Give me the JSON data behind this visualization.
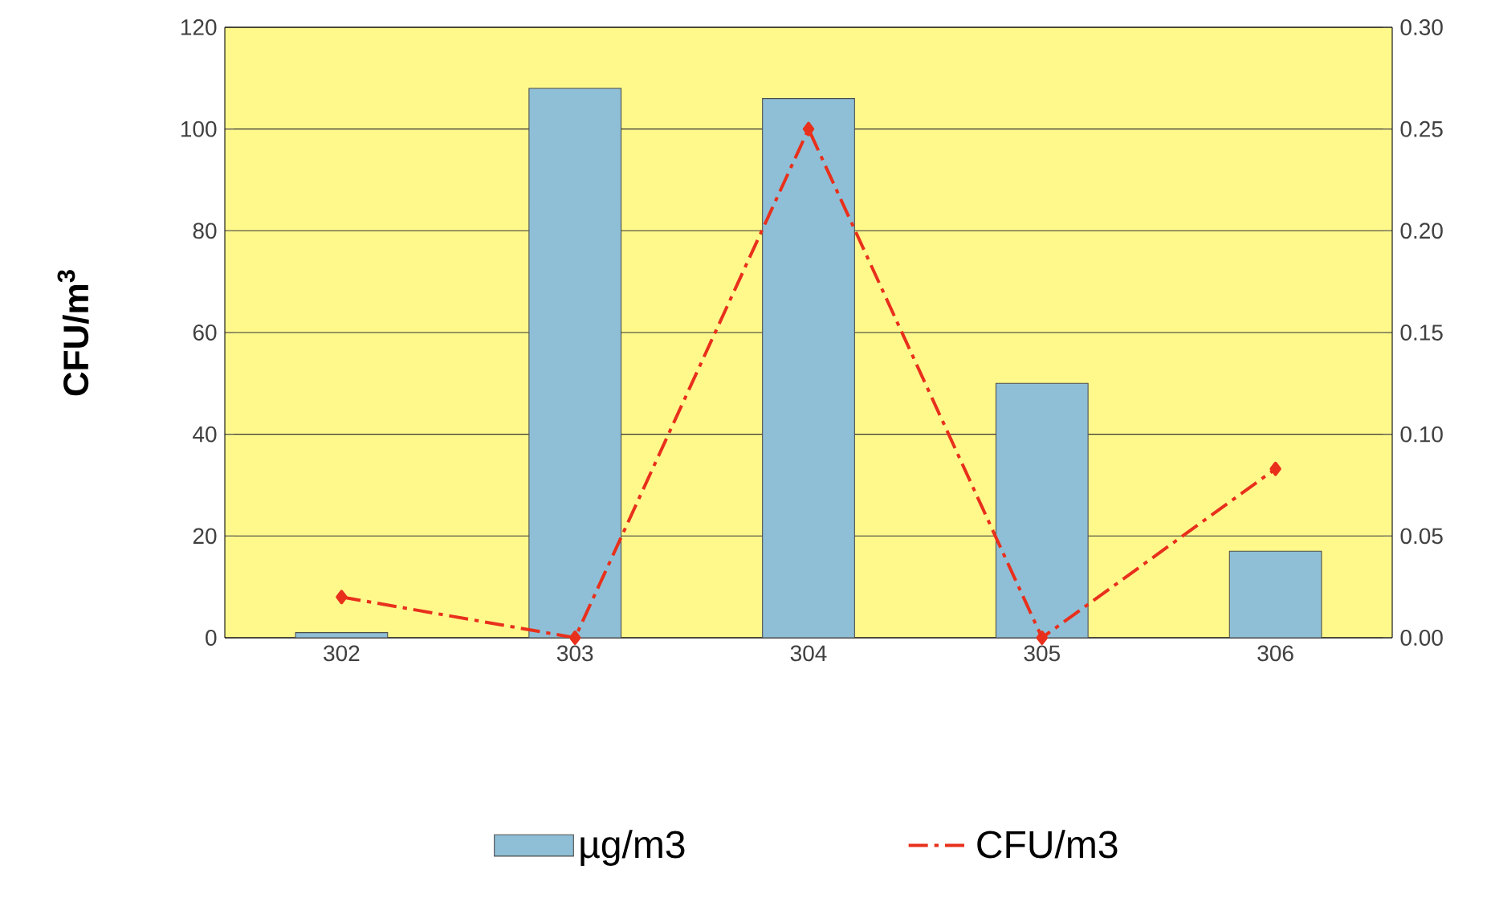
{
  "chart_data": {
    "type": "bar",
    "ylabel": "CFU/m$^{3}$",
    "categories": [
      "302",
      "303",
      "304",
      "305",
      "306"
    ],
    "series": [
      {
        "name": "µg/m3",
        "color": "#8fbfd6",
        "values": [
          1,
          108,
          106,
          50,
          17
        ]
      },
      {
        "name": "CFU/m3",
        "type": "line",
        "axis": "y2",
        "color": "#e8301c",
        "marker": "diamond",
        "line_style": "dashdot",
        "values": [
          0.02,
          0,
          0.25,
          0,
          0.083
        ]
      }
    ],
    "ylim": [
      0,
      120
    ],
    "yticks": [
      0,
      20,
      40,
      60,
      80,
      100,
      120
    ],
    "y2lim": [
      0,
      0.3
    ],
    "y2ticks": [
      {
        "value": 0,
        "label": "0.00"
      },
      {
        "value": 0.05,
        "label": "0.05"
      },
      {
        "value": 0.1,
        "label": "0.10"
      },
      {
        "value": 0.15,
        "label": "0.15"
      },
      {
        "value": 0.2,
        "label": "0.20"
      },
      {
        "value": 0.25,
        "label": "0.25"
      },
      {
        "value": 0.3,
        "label": "0.30"
      }
    ],
    "grid": "y",
    "legend": "bottom"
  }
}
